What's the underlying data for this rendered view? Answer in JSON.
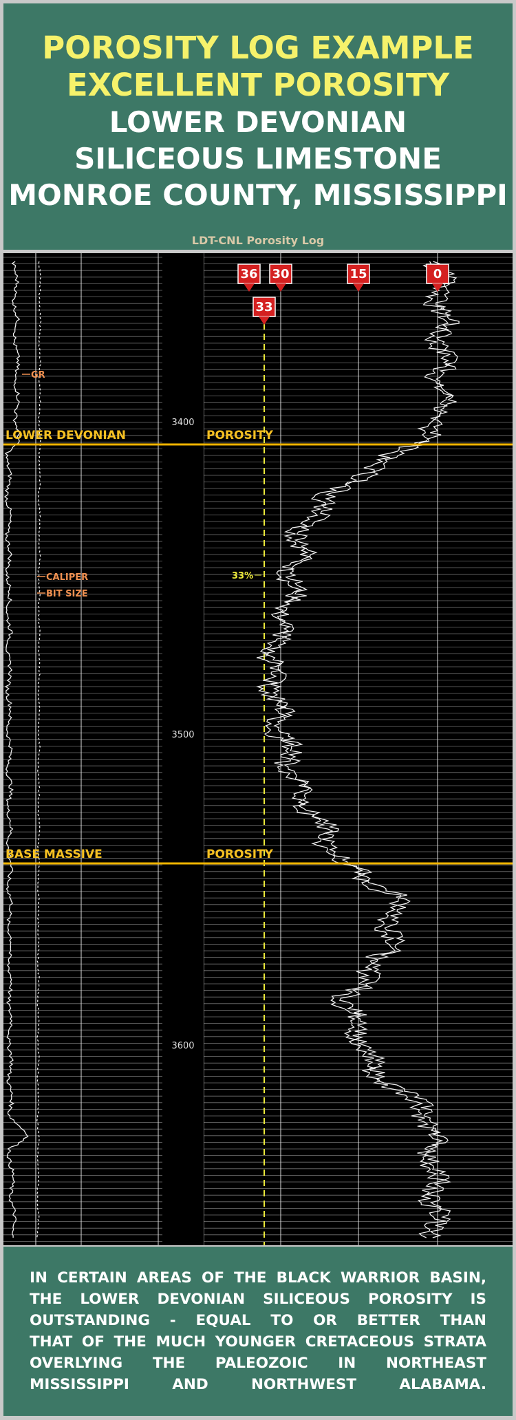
{
  "header": {
    "title_lines": [
      "POROSITY LOG EXAMPLE",
      "EXCELLENT POROSITY"
    ],
    "subtitle_lines": [
      "LOWER DEVONIAN",
      "SILICEOUS LIMESTONE",
      "MONROE COUNTY, MISSISSIPPI"
    ],
    "log_caption": "LDT-CNL Porosity Log"
  },
  "log": {
    "scale_markers": [
      "36",
      "30",
      "15",
      "0"
    ],
    "cutoff_marker": "33",
    "cutoff_label": "33%",
    "depths": [
      "3400",
      "3500",
      "3600"
    ],
    "curve_labels": [
      "GR",
      "CALIPER",
      "BIT SIZE"
    ],
    "tops": [
      {
        "left": "LOWER DEVONIAN",
        "right": "POROSITY"
      },
      {
        "left": "BASE MASSIVE",
        "right": "POROSITY"
      }
    ]
  },
  "footer": {
    "lines": [
      "IN CERTAIN AREAS OF THE BLACK WARRIOR BASIN,",
      "THE LOWER DEVONIAN SILICEOUS POROSITY IS",
      "OUTSTANDING - EQUAL TO OR BETTER THAN",
      "THAT OF THE MUCH YOUNGER CRETACEOUS STRATA",
      "OVERLYING THE PALEOZOIC IN NORTHEAST",
      "MISSISSIPPI AND NORTHWEST ALABAMA."
    ]
  }
}
